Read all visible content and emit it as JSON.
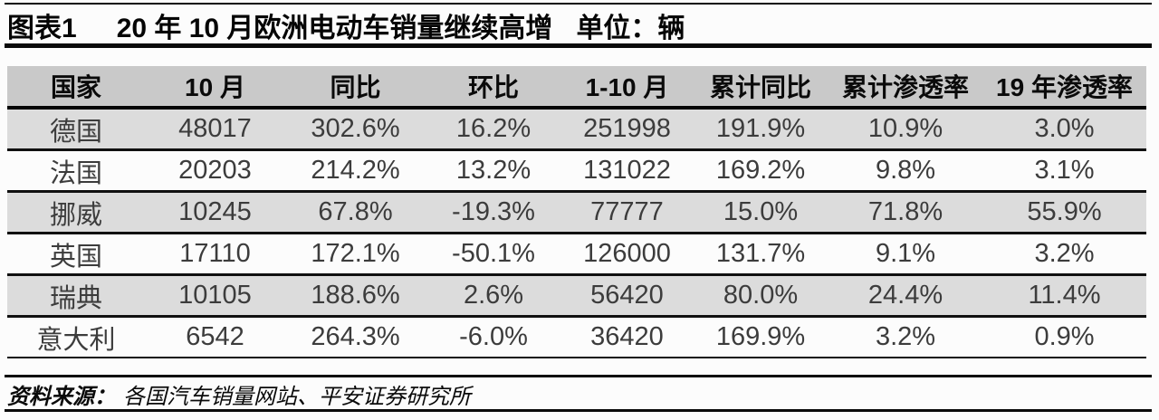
{
  "title": {
    "label": "图表1",
    "text": "20 年 10 月欧洲电动车销量继续高增",
    "unit": "单位：辆"
  },
  "table": {
    "columns": [
      "国家",
      "10 月",
      "同比",
      "环比",
      "1-10 月",
      "累计同比",
      "累计渗透率",
      "19 年渗透率"
    ],
    "column_keys": [
      "country",
      "oct",
      "yoy",
      "mom",
      "jan-oct",
      "cum-yoy",
      "cum-penetration",
      "penetration-2019"
    ],
    "rows": [
      {
        "country": "德国",
        "values": [
          "48017",
          "302.6%",
          "16.2%",
          "251998",
          "191.9%",
          "10.9%",
          "3.0%"
        ]
      },
      {
        "country": "法国",
        "values": [
          "20203",
          "214.2%",
          "13.2%",
          "131022",
          "169.2%",
          "9.8%",
          "3.1%"
        ]
      },
      {
        "country": "挪威",
        "values": [
          "10245",
          "67.8%",
          "-19.3%",
          "77777",
          "15.0%",
          "71.8%",
          "55.9%"
        ]
      },
      {
        "country": "英国",
        "values": [
          "17110",
          "172.1%",
          "-50.1%",
          "126000",
          "131.7%",
          "9.1%",
          "3.2%"
        ]
      },
      {
        "country": "瑞典",
        "values": [
          "10105",
          "188.6%",
          "2.6%",
          "56420",
          "80.0%",
          "24.4%",
          "11.4%"
        ]
      },
      {
        "country": "意大利",
        "values": [
          "6542",
          "264.3%",
          "-6.0%",
          "36420",
          "169.9%",
          "3.2%",
          "0.9%"
        ]
      }
    ]
  },
  "footer": {
    "label": "资料来源：",
    "text": "各国汽车销量网站、平安证券研究所"
  },
  "colors": {
    "header_bg": "#c9c9c9",
    "row_shaded_bg": "#dcdcdc",
    "row_bg": "#fcfcfc",
    "rule": "#0a0a0a",
    "data_text": "#3c3c3c"
  }
}
